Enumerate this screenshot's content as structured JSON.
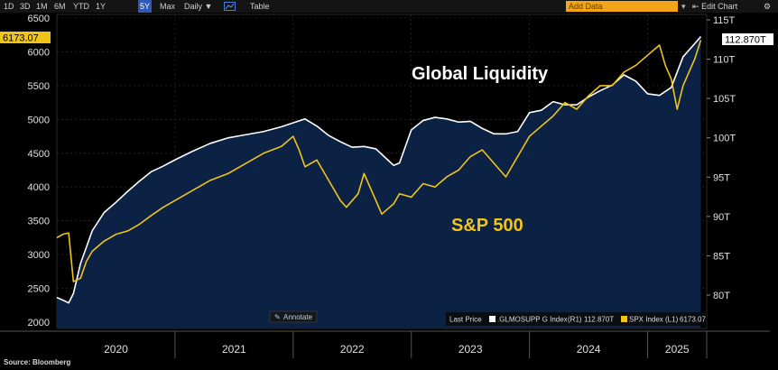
{
  "toolbar": {
    "ranges": [
      "1D",
      "3D",
      "1M",
      "6M",
      "YTD",
      "1Y",
      "5Y",
      "Max"
    ],
    "active_range": "5Y",
    "frequency": "Daily",
    "table_label": "Table",
    "add_data_placeholder": "Add Data",
    "edit_chart_label": "Edit Chart",
    "colors": {
      "active": "#2e59b8",
      "add_data": "#f3a51a"
    }
  },
  "chart_data": {
    "type": "line",
    "title": "",
    "annotations": {
      "liquidity_label": "Global Liquidity",
      "spx_label": "S&P 500"
    },
    "x_ticks": [
      "2020",
      "2021",
      "2022",
      "2023",
      "2024",
      "2025"
    ],
    "x_range": [
      2020.0,
      2025.5
    ],
    "left_axis": {
      "ticks": [
        "6500",
        "6000",
        "5500",
        "5000",
        "4500",
        "4000",
        "3500",
        "3000",
        "2500",
        "2000"
      ],
      "range": [
        2000,
        6500
      ],
      "last_value": "6173.07"
    },
    "right_axis": {
      "ticks": [
        "115T",
        "110T",
        "105T",
        "100T",
        "95T",
        "90T",
        "85T",
        "80T"
      ],
      "range": [
        78,
        115
      ],
      "last_value": "112.870T"
    },
    "series": [
      {
        "name": ".GLMOSUPP G Index",
        "axis": "R1",
        "color": "#ffffff",
        "fill": "#0c2244",
        "x": [
          2020.0,
          2020.06,
          2020.1,
          2020.14,
          2020.2,
          2020.3,
          2020.4,
          2020.5,
          2020.6,
          2020.7,
          2020.8,
          2020.9,
          2021.0,
          2021.15,
          2021.3,
          2021.45,
          2021.6,
          2021.75,
          2021.9,
          2022.0,
          2022.1,
          2022.2,
          2022.3,
          2022.4,
          2022.5,
          2022.6,
          2022.7,
          2022.8,
          2022.85,
          2022.9,
          2023.0,
          2023.1,
          2023.2,
          2023.3,
          2023.4,
          2023.5,
          2023.6,
          2023.7,
          2023.8,
          2023.9,
          2024.0,
          2024.1,
          2024.2,
          2024.3,
          2024.4,
          2024.5,
          2024.6,
          2024.7,
          2024.8,
          2024.9,
          2025.0,
          2025.1,
          2025.2,
          2025.3,
          2025.4,
          2025.45
        ],
        "y": [
          79.7,
          79.3,
          79.0,
          80.2,
          84.0,
          88.2,
          90.5,
          91.8,
          93.2,
          94.5,
          95.7,
          96.4,
          97.2,
          98.3,
          99.3,
          100.0,
          100.4,
          100.8,
          101.4,
          101.9,
          102.4,
          101.5,
          100.3,
          99.5,
          98.8,
          98.9,
          98.6,
          97.2,
          96.5,
          96.8,
          101.0,
          102.2,
          102.6,
          102.4,
          102.0,
          102.1,
          101.2,
          100.5,
          100.5,
          100.8,
          103.2,
          103.5,
          104.6,
          104.2,
          104.2,
          105.2,
          106.0,
          106.7,
          108.0,
          107.2,
          105.6,
          105.4,
          106.4,
          110.3,
          112.0,
          112.87
        ]
      },
      {
        "name": "SPX Index",
        "axis": "L1",
        "color": "#f0c419",
        "x": [
          2020.0,
          2020.05,
          2020.1,
          2020.14,
          2020.2,
          2020.25,
          2020.3,
          2020.4,
          2020.5,
          2020.6,
          2020.7,
          2020.8,
          2020.9,
          2021.0,
          2021.15,
          2021.3,
          2021.45,
          2021.6,
          2021.75,
          2021.9,
          2022.0,
          2022.05,
          2022.1,
          2022.2,
          2022.3,
          2022.4,
          2022.45,
          2022.55,
          2022.6,
          2022.7,
          2022.75,
          2022.85,
          2022.9,
          2023.0,
          2023.1,
          2023.2,
          2023.3,
          2023.4,
          2023.5,
          2023.6,
          2023.7,
          2023.8,
          2023.9,
          2024.0,
          2024.1,
          2024.2,
          2024.3,
          2024.4,
          2024.5,
          2024.6,
          2024.7,
          2024.8,
          2024.9,
          2025.0,
          2025.1,
          2025.15,
          2025.2,
          2025.25,
          2025.3,
          2025.4,
          2025.45
        ],
        "y": [
          3250,
          3300,
          3320,
          2600,
          2650,
          2900,
          3050,
          3200,
          3300,
          3350,
          3450,
          3580,
          3700,
          3800,
          3950,
          4100,
          4200,
          4350,
          4500,
          4600,
          4750,
          4550,
          4300,
          4400,
          4100,
          3800,
          3700,
          3900,
          4200,
          3800,
          3600,
          3750,
          3900,
          3850,
          4050,
          4000,
          4150,
          4250,
          4450,
          4550,
          4350,
          4150,
          4450,
          4750,
          4900,
          5050,
          5250,
          5150,
          5350,
          5500,
          5500,
          5700,
          5800,
          5950,
          6100,
          5800,
          5600,
          5150,
          5500,
          5900,
          6173.07
        ]
      }
    ],
    "legend": {
      "prefix": "Last Price",
      "entries": [
        {
          "label": ".GLMOSUPP G Index",
          "axis": "(R1)",
          "value": "112.870T",
          "color": "#ffffff"
        },
        {
          "label": "SPX Index",
          "axis": "(L1)",
          "value": "6173.07",
          "color": "#f0c419"
        }
      ]
    },
    "annotate_label": "Annotate"
  },
  "source": "Source: Bloomberg"
}
